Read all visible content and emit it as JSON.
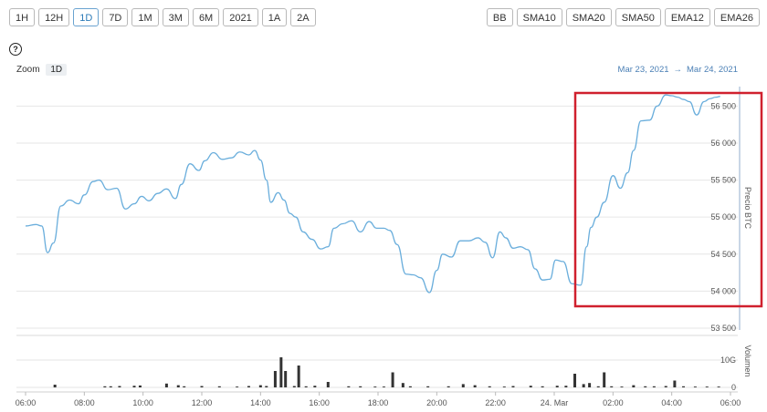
{
  "toolbar_left": [
    "1H",
    "12H",
    "1D",
    "7D",
    "1M",
    "3M",
    "6M",
    "2021",
    "1A",
    "2A"
  ],
  "toolbar_left_active": "1D",
  "toolbar_right": [
    "BB",
    "SMA10",
    "SMA20",
    "SMA50",
    "EMA12",
    "EMA26"
  ],
  "help_glyph": "?",
  "zoom": {
    "label": "Zoom",
    "value": "1D"
  },
  "range": {
    "from": "Mar 23, 2021",
    "arrow": "→",
    "to": "Mar 24, 2021"
  },
  "colors": {
    "line": "#6aaedc",
    "volume": "#333333",
    "highlight": "#d0202e",
    "grid": "#e6e6e6"
  },
  "chart_data": {
    "type": "line",
    "ylabel": "Precio BTC",
    "y2label": "Volumen",
    "ylim": [
      53500,
      56800
    ],
    "yticks": [
      53500,
      54000,
      54500,
      55000,
      55500,
      56000,
      56500
    ],
    "ytick_labels": [
      "53 500",
      "54 000",
      "54 500",
      "55 000",
      "55 500",
      "56 000",
      "56 500"
    ],
    "vol_ticks": [
      0,
      10
    ],
    "vol_tick_labels": [
      "0",
      "10G"
    ],
    "xlim": [
      6,
      30
    ],
    "xticks": [
      6,
      8,
      10,
      12,
      14,
      16,
      18,
      20,
      22,
      24,
      26,
      28,
      30
    ],
    "xtick_labels": [
      "06:00",
      "08:00",
      "10:00",
      "12:00",
      "14:00",
      "16:00",
      "18:00",
      "20:00",
      "22:00",
      "24. Mar",
      "02:00",
      "04:00",
      "06:00"
    ],
    "price": {
      "x": [
        6.0,
        6.35,
        6.55,
        6.75,
        6.95,
        7.2,
        7.5,
        7.8,
        8.0,
        8.3,
        8.5,
        8.8,
        9.1,
        9.4,
        9.7,
        9.95,
        10.2,
        10.5,
        10.8,
        11.1,
        11.3,
        11.6,
        11.9,
        12.1,
        12.4,
        12.7,
        13.0,
        13.3,
        13.6,
        13.8,
        14.0,
        14.2,
        14.35,
        14.6,
        14.8,
        15.0,
        15.2,
        15.45,
        15.75,
        16.05,
        16.3,
        16.5,
        16.8,
        17.1,
        17.4,
        17.7,
        17.95,
        18.2,
        18.4,
        18.65,
        18.95,
        19.2,
        19.45,
        19.75,
        20.0,
        20.2,
        20.5,
        20.8,
        21.1,
        21.4,
        21.65,
        21.9,
        22.15,
        22.35,
        22.6,
        22.85,
        23.1,
        23.35,
        23.6,
        23.85,
        24.05,
        24.3,
        24.6,
        24.9,
        25.1,
        25.25,
        25.45,
        25.7,
        26.0,
        26.25,
        26.5,
        26.7,
        26.95,
        27.25,
        27.5,
        27.8,
        28.0,
        28.2,
        28.4,
        28.6,
        28.85,
        29.1,
        29.3,
        29.5,
        29.65
      ],
      "y": [
        54880,
        54900,
        54880,
        54520,
        54650,
        55150,
        55230,
        55180,
        55300,
        55480,
        55500,
        55370,
        55390,
        55110,
        55180,
        55280,
        55220,
        55320,
        55380,
        55250,
        55440,
        55720,
        55630,
        55760,
        55870,
        55780,
        55800,
        55880,
        55840,
        55900,
        55770,
        55500,
        55200,
        55330,
        55230,
        55050,
        55000,
        54800,
        54700,
        54570,
        54600,
        54850,
        54910,
        54950,
        54800,
        54940,
        54850,
        54850,
        54820,
        54630,
        54230,
        54220,
        54180,
        53980,
        54280,
        54500,
        54460,
        54680,
        54680,
        54720,
        54660,
        54450,
        54800,
        54720,
        54580,
        54600,
        54560,
        54300,
        54150,
        54160,
        54420,
        54400,
        54100,
        54080,
        54600,
        54860,
        55000,
        55200,
        55560,
        55390,
        55600,
        55900,
        56300,
        56310,
        56500,
        56650,
        56640,
        56620,
        56590,
        56560,
        56380,
        56560,
        56600,
        56620,
        56630
      ]
    },
    "volume": {
      "x": [
        7.0,
        8.7,
        8.9,
        9.2,
        9.7,
        9.9,
        10.8,
        11.2,
        11.4,
        12.0,
        12.6,
        13.2,
        13.6,
        14.0,
        14.2,
        14.5,
        14.7,
        14.85,
        15.15,
        15.3,
        15.55,
        15.85,
        16.3,
        17.0,
        17.4,
        17.9,
        18.2,
        18.5,
        18.85,
        19.1,
        19.7,
        20.4,
        20.9,
        21.3,
        21.8,
        22.3,
        22.6,
        23.2,
        23.6,
        24.1,
        24.4,
        24.7,
        25.0,
        25.2,
        25.5,
        25.7,
        25.95,
        26.3,
        26.7,
        27.1,
        27.4,
        27.8,
        28.1,
        28.4,
        28.8,
        29.2,
        29.6
      ],
      "y": [
        1.0,
        0.4,
        0.4,
        0.5,
        0.6,
        0.7,
        1.4,
        0.8,
        0.4,
        0.5,
        0.4,
        0.3,
        0.5,
        0.8,
        0.5,
        6.0,
        11.0,
        6.0,
        0.5,
        8.0,
        0.4,
        0.6,
        2.0,
        0.4,
        0.4,
        0.3,
        0.3,
        5.5,
        1.6,
        0.4,
        0.4,
        0.4,
        1.2,
        0.8,
        0.4,
        0.3,
        0.5,
        0.6,
        0.4,
        0.6,
        0.6,
        5.0,
        1.2,
        1.6,
        0.4,
        5.5,
        0.4,
        0.3,
        0.8,
        0.4,
        0.4,
        0.5,
        2.5,
        0.4,
        0.3,
        0.3,
        0.3
      ]
    }
  }
}
